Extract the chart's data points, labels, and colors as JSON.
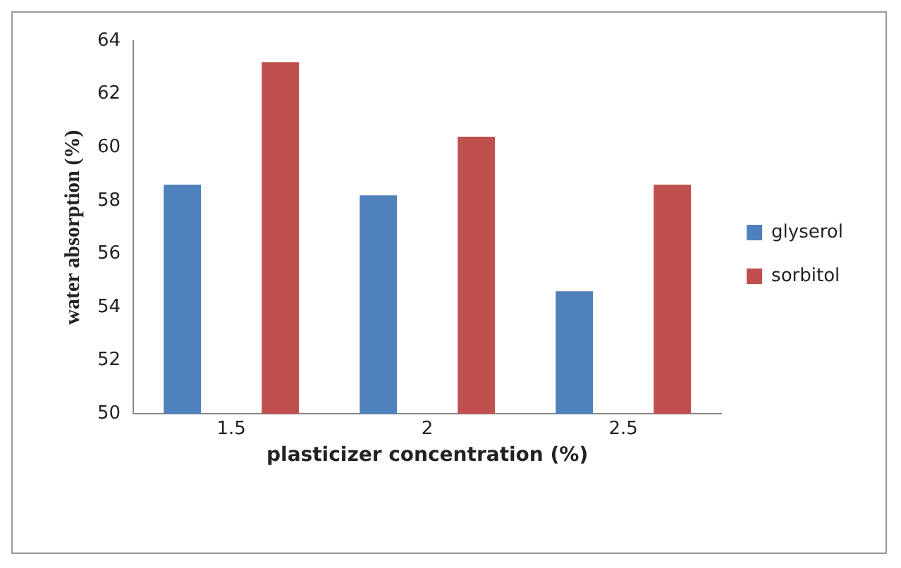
{
  "chart_data": {
    "type": "bar",
    "xlabel": "plasticizer concentration (%)",
    "ylabel": "water absorption (%)",
    "categories": [
      "1.5",
      "2",
      "2.5"
    ],
    "series": [
      {
        "name": "glyserol",
        "color": "#4f81bd",
        "values": [
          58.6,
          58.2,
          54.6
        ]
      },
      {
        "name": "sorbitol",
        "color": "#c0504d",
        "values": [
          63.2,
          60.4,
          58.6
        ]
      }
    ],
    "ylim": [
      50,
      64
    ],
    "yticks": [
      50,
      52,
      54,
      56,
      58,
      60,
      62,
      64
    ],
    "grid": false,
    "legend": "right"
  }
}
